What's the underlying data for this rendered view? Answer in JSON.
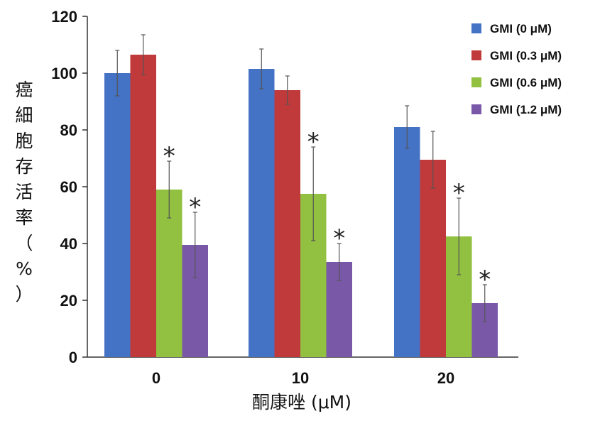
{
  "chart_data": {
    "type": "bar",
    "title": "",
    "xlabel": "酮康唑 (μM)",
    "ylabel": "癌細胞存活率（%）",
    "ylabel_chars": [
      "癌",
      "細",
      "胞",
      "存",
      "活",
      "率",
      "（",
      "%",
      "）"
    ],
    "categories": [
      "0",
      "10",
      "20"
    ],
    "ylim": [
      0,
      120
    ],
    "yticks": [
      "0",
      "20",
      "40",
      "60",
      "80",
      "100",
      "120"
    ],
    "legend_position": "top-right",
    "significance_marker": "*",
    "series": [
      {
        "name": "GMI (0 μM)",
        "color": "#4472c4",
        "values": [
          100,
          101.5,
          81
        ],
        "errors": [
          8,
          7,
          7.5
        ],
        "significant": [
          false,
          false,
          false
        ]
      },
      {
        "name": "GMI (0.3 μM)",
        "color": "#c0393b",
        "values": [
          106.5,
          94,
          69.5
        ],
        "errors": [
          7,
          5,
          10
        ],
        "significant": [
          false,
          false,
          false
        ]
      },
      {
        "name": "GMI (0.6 μM)",
        "color": "#92c040",
        "values": [
          59,
          57.5,
          42.5
        ],
        "errors": [
          10,
          16.5,
          13.5
        ],
        "significant": [
          true,
          true,
          true
        ]
      },
      {
        "name": "GMI (1.2 μM)",
        "color": "#7a58a8",
        "values": [
          39.5,
          33.5,
          19
        ],
        "errors": [
          11.5,
          6.5,
          6.5
        ],
        "significant": [
          true,
          true,
          true
        ]
      }
    ]
  }
}
